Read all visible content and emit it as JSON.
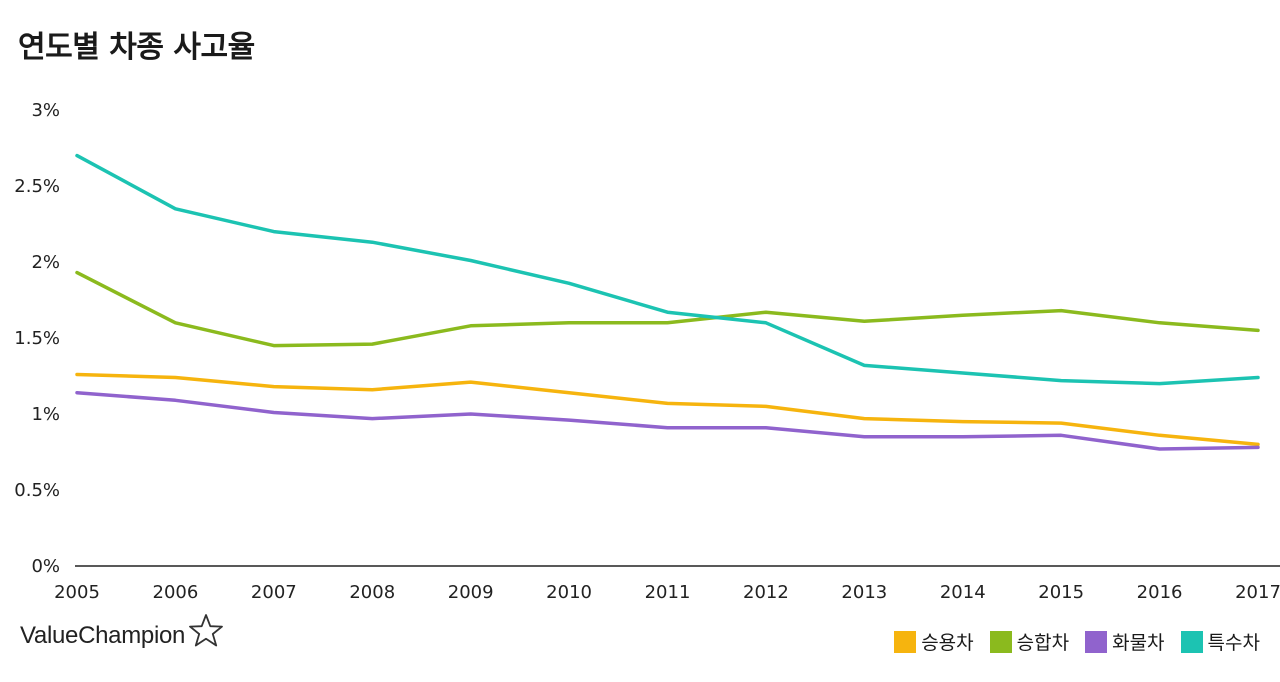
{
  "brand": {
    "name": "ValueChampion",
    "icon": "star-outline-icon"
  },
  "chart_data": {
    "type": "line",
    "title": "연도별 차종 사고율",
    "xlabel": "",
    "ylabel": "",
    "x": [
      "2005",
      "2006",
      "2007",
      "2008",
      "2009",
      "2010",
      "2011",
      "2012",
      "2013",
      "2014",
      "2015",
      "2016",
      "2017"
    ],
    "ylim": [
      0,
      3
    ],
    "yticks": [
      0,
      0.5,
      1,
      1.5,
      2,
      2.5,
      3
    ],
    "ytick_labels": [
      "0%",
      "0.5%",
      "1%",
      "1.5%",
      "2%",
      "2.5%",
      "3%"
    ],
    "grid": false,
    "legend_position": "bottom-right",
    "series": [
      {
        "name": "승용차",
        "color": "#F6B40E",
        "values": [
          1.26,
          1.24,
          1.18,
          1.16,
          1.21,
          1.14,
          1.07,
          1.05,
          0.97,
          0.95,
          0.94,
          0.86,
          0.8
        ]
      },
      {
        "name": "승합차",
        "color": "#8BBA1E",
        "values": [
          1.93,
          1.6,
          1.45,
          1.46,
          1.58,
          1.6,
          1.6,
          1.67,
          1.61,
          1.65,
          1.68,
          1.6,
          1.55
        ]
      },
      {
        "name": "화물차",
        "color": "#9063CD",
        "values": [
          1.14,
          1.09,
          1.01,
          0.97,
          1.0,
          0.96,
          0.91,
          0.91,
          0.85,
          0.85,
          0.86,
          0.77,
          0.78
        ]
      },
      {
        "name": "특수차",
        "color": "#1CC3B2",
        "values": [
          2.7,
          2.35,
          2.2,
          2.13,
          2.01,
          1.86,
          1.67,
          1.6,
          1.32,
          1.27,
          1.22,
          1.2,
          1.24
        ]
      }
    ]
  }
}
